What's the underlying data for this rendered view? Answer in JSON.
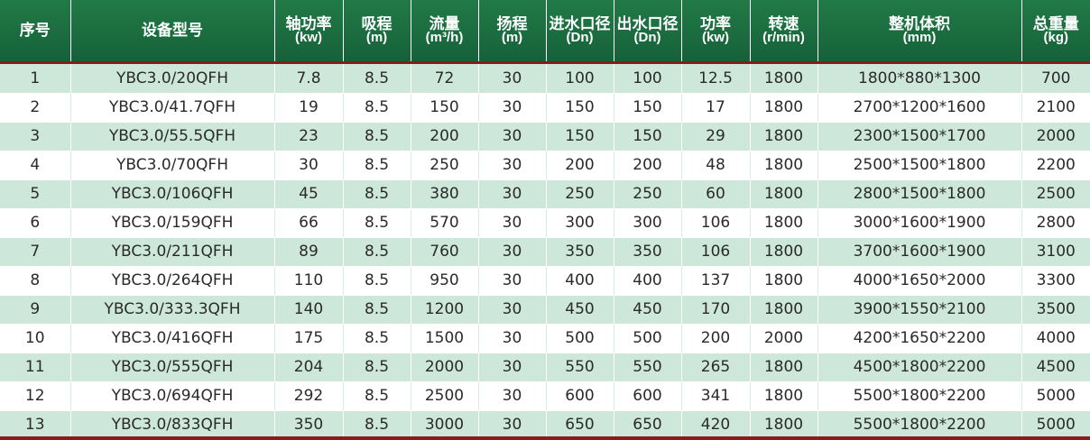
{
  "table": {
    "columns": [
      {
        "label": "序号",
        "unit": ""
      },
      {
        "label": "设备型号",
        "unit": ""
      },
      {
        "label": "轴功率",
        "unit": "(kw)"
      },
      {
        "label": "吸程",
        "unit": "(m)"
      },
      {
        "label": "流量",
        "unit": "(m³/h)"
      },
      {
        "label": "扬程",
        "unit": "(m)"
      },
      {
        "label": "进水口径",
        "unit": "(Dn)"
      },
      {
        "label": "出水口径",
        "unit": "(Dn)"
      },
      {
        "label": "功率",
        "unit": "(kw)"
      },
      {
        "label": "转速",
        "unit": "(r/min)"
      },
      {
        "label": "整机体积",
        "unit": "(mm)"
      },
      {
        "label": "总重量",
        "unit": "(kg)"
      }
    ],
    "rows": [
      [
        "1",
        "YBC3.0/20QFH",
        "7.8",
        "8.5",
        "72",
        "30",
        "100",
        "100",
        "12.5",
        "1800",
        "1800*880*1300",
        "700"
      ],
      [
        "2",
        "YBC3.0/41.7QFH",
        "19",
        "8.5",
        "150",
        "30",
        "150",
        "150",
        "17",
        "1800",
        "2700*1200*1600",
        "2100"
      ],
      [
        "3",
        "YBC3.0/55.5QFH",
        "23",
        "8.5",
        "200",
        "30",
        "150",
        "150",
        "29",
        "1800",
        "2300*1500*1700",
        "2000"
      ],
      [
        "4",
        "YBC3.0/70QFH",
        "30",
        "8.5",
        "250",
        "30",
        "200",
        "200",
        "48",
        "1800",
        "2500*1500*1800",
        "2200"
      ],
      [
        "5",
        "YBC3.0/106QFH",
        "45",
        "8.5",
        "380",
        "30",
        "250",
        "250",
        "60",
        "1800",
        "2800*1500*1800",
        "2500"
      ],
      [
        "6",
        "YBC3.0/159QFH",
        "66",
        "8.5",
        "570",
        "30",
        "300",
        "300",
        "106",
        "1800",
        "3000*1600*1900",
        "2800"
      ],
      [
        "7",
        "YBC3.0/211QFH",
        "89",
        "8.5",
        "760",
        "30",
        "350",
        "350",
        "106",
        "1800",
        "3700*1600*1900",
        "3100"
      ],
      [
        "8",
        "YBC3.0/264QFH",
        "110",
        "8.5",
        "950",
        "30",
        "400",
        "400",
        "137",
        "1800",
        "4000*1650*2000",
        "3300"
      ],
      [
        "9",
        "YBC3.0/333.3QFH",
        "140",
        "8.5",
        "1200",
        "30",
        "450",
        "450",
        "170",
        "1800",
        "3900*1550*2100",
        "3500"
      ],
      [
        "10",
        "YBC3.0/416QFH",
        "175",
        "8.5",
        "1500",
        "30",
        "500",
        "500",
        "200",
        "2000",
        "4200*1650*2200",
        "4000"
      ],
      [
        "11",
        "YBC3.0/555QFH",
        "204",
        "8.5",
        "2000",
        "30",
        "550",
        "550",
        "265",
        "1800",
        "4500*1800*2200",
        "4500"
      ],
      [
        "12",
        "YBC3.0/694QFH",
        "292",
        "8.5",
        "2500",
        "30",
        "600",
        "600",
        "341",
        "1800",
        "5500*1800*2200",
        "5000"
      ],
      [
        "13",
        "YBC3.0/833QFH",
        "350",
        "8.5",
        "3000",
        "30",
        "650",
        "650",
        "420",
        "1800",
        "5500*1800*2200",
        "5000"
      ]
    ]
  },
  "colors": {
    "header_bg": "#1b6b3d",
    "header_text": "#ffffff",
    "row_alt_bg": "#cde8da",
    "row_bg": "#ffffff",
    "separator": "#8b1a1a"
  }
}
